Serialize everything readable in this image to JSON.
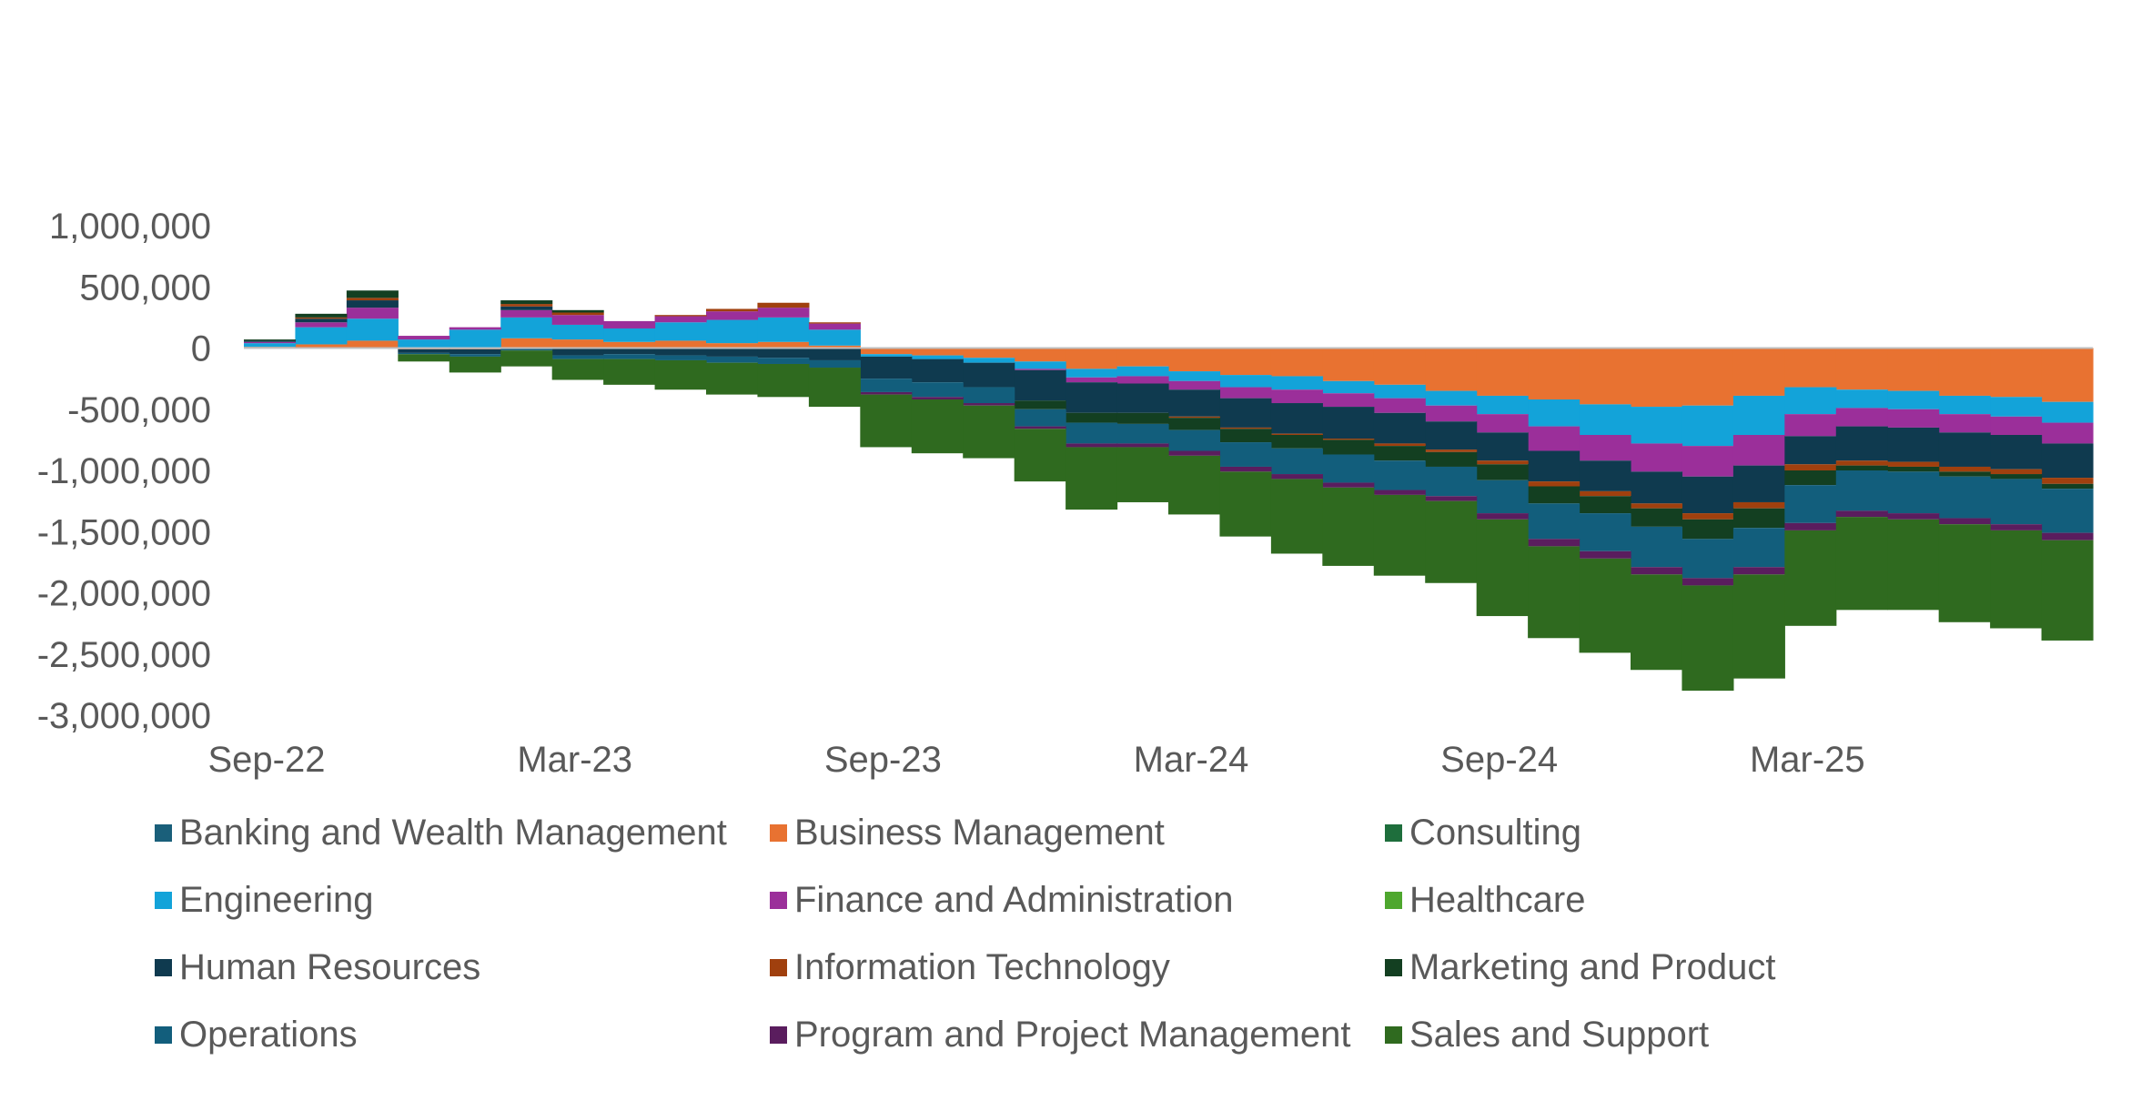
{
  "chart_data": {
    "type": "stacked-area",
    "title": "",
    "xlabel": "",
    "ylabel": "",
    "ylim": [
      -3000000,
      1000000
    ],
    "yticks": [
      1000000,
      500000,
      0,
      -500000,
      -1000000,
      -1500000,
      -2000000,
      -2500000,
      -3000000
    ],
    "ytick_labels": [
      "1,000,000",
      "500,000",
      "0",
      "-500,000",
      "-1,000,000",
      "-1,500,000",
      "-2,000,000",
      "-2,500,000",
      "-3,000,000"
    ],
    "x_ticks": [
      {
        "index": 0,
        "label": "Sep-22"
      },
      {
        "index": 6,
        "label": "Mar-23"
      },
      {
        "index": 12,
        "label": "Sep-23"
      },
      {
        "index": 18,
        "label": "Mar-24"
      },
      {
        "index": 24,
        "label": "Sep-24"
      },
      {
        "index": 30,
        "label": "Mar-25"
      }
    ],
    "legend_position": "bottom",
    "months": [
      "Sep-22",
      "Oct-22",
      "Nov-22",
      "Dec-22",
      "Jan-23",
      "Feb-23",
      "Mar-23",
      "Apr-23",
      "May-23",
      "Jun-23",
      "Jul-23",
      "Aug-23",
      "Sep-23",
      "Oct-23",
      "Nov-23",
      "Dec-23",
      "Jan-24",
      "Feb-24",
      "Mar-24",
      "Apr-24",
      "May-24",
      "Jun-24",
      "Jul-24",
      "Aug-24",
      "Sep-24",
      "Oct-24",
      "Nov-24",
      "Dec-24",
      "Jan-25",
      "Feb-25",
      "Mar-25",
      "Apr-25",
      "May-25",
      "Jun-25",
      "Jul-25",
      "Aug-25"
    ],
    "series": [
      {
        "name": "Banking and Wealth Management",
        "color": "#1a5f7a",
        "values": [
          0,
          0,
          0,
          0,
          0,
          0,
          0,
          0,
          0,
          0,
          0,
          0,
          0,
          0,
          0,
          0,
          0,
          0,
          0,
          0,
          0,
          0,
          0,
          0,
          0,
          0,
          0,
          0,
          0,
          0,
          0,
          0,
          0,
          0,
          0,
          0
        ]
      },
      {
        "name": "Business Management",
        "color": "#e87231",
        "values": [
          10000,
          30000,
          60000,
          -10000,
          -10000,
          80000,
          70000,
          50000,
          60000,
          40000,
          50000,
          20000,
          -50000,
          -60000,
          -80000,
          -110000,
          -170000,
          -150000,
          -190000,
          -220000,
          -230000,
          -270000,
          -300000,
          -350000,
          -390000,
          -420000,
          -460000,
          -480000,
          -470000,
          -390000,
          -320000,
          -340000,
          -350000,
          -390000,
          -400000,
          -440000
        ]
      },
      {
        "name": "Consulting",
        "color": "#1e6e3c",
        "values": [
          0,
          0,
          0,
          0,
          0,
          0,
          0,
          0,
          0,
          0,
          0,
          0,
          0,
          0,
          0,
          0,
          0,
          0,
          0,
          0,
          0,
          0,
          0,
          0,
          0,
          0,
          0,
          0,
          0,
          0,
          0,
          0,
          0,
          0,
          0,
          0
        ]
      },
      {
        "name": "Engineering",
        "color": "#13a3d9",
        "values": [
          30000,
          140000,
          180000,
          70000,
          150000,
          170000,
          120000,
          110000,
          150000,
          190000,
          200000,
          130000,
          -20000,
          -30000,
          -40000,
          -60000,
          -70000,
          -80000,
          -80000,
          -100000,
          -110000,
          -100000,
          -110000,
          -120000,
          -150000,
          -220000,
          -250000,
          -300000,
          -330000,
          -320000,
          -220000,
          -150000,
          -150000,
          -150000,
          -160000,
          -170000
        ]
      },
      {
        "name": "Finance and Administration",
        "color": "#9b2f9a",
        "values": [
          10000,
          40000,
          90000,
          30000,
          20000,
          60000,
          80000,
          60000,
          50000,
          70000,
          80000,
          50000,
          0,
          0,
          0,
          -10000,
          -40000,
          -60000,
          -70000,
          -90000,
          -110000,
          -110000,
          -120000,
          -130000,
          -150000,
          -200000,
          -210000,
          -230000,
          -250000,
          -250000,
          -180000,
          -150000,
          -150000,
          -150000,
          -150000,
          -170000
        ]
      },
      {
        "name": "Healthcare",
        "color": "#4ea72e",
        "values": [
          0,
          0,
          0,
          0,
          0,
          0,
          0,
          0,
          0,
          0,
          0,
          0,
          0,
          0,
          0,
          0,
          0,
          0,
          0,
          0,
          0,
          0,
          0,
          0,
          0,
          0,
          0,
          0,
          0,
          0,
          0,
          0,
          0,
          0,
          0,
          0
        ]
      },
      {
        "name": "Human Resources",
        "color": "#0f3a4f",
        "values": [
          10000,
          30000,
          60000,
          -30000,
          -40000,
          30000,
          -60000,
          -50000,
          -60000,
          -70000,
          -80000,
          -100000,
          -180000,
          -190000,
          -200000,
          -250000,
          -250000,
          -240000,
          -220000,
          -240000,
          -250000,
          -260000,
          -250000,
          -230000,
          -230000,
          -250000,
          -250000,
          -260000,
          -300000,
          -300000,
          -230000,
          -280000,
          -280000,
          -280000,
          -280000,
          -280000
        ]
      },
      {
        "name": "Information Technology",
        "color": "#a0400e",
        "values": [
          0,
          10000,
          20000,
          0,
          0,
          20000,
          20000,
          0,
          10000,
          20000,
          40000,
          10000,
          0,
          0,
          0,
          0,
          0,
          0,
          -10000,
          -10000,
          -10000,
          -10000,
          -20000,
          -20000,
          -30000,
          -40000,
          -40000,
          -40000,
          -50000,
          -50000,
          -50000,
          -40000,
          -40000,
          -40000,
          -40000,
          -50000
        ]
      },
      {
        "name": "Marketing and Product",
        "color": "#133f21",
        "values": [
          10000,
          30000,
          60000,
          0,
          0,
          30000,
          20000,
          0,
          0,
          0,
          0,
          0,
          0,
          0,
          0,
          -70000,
          -80000,
          -90000,
          -100000,
          -110000,
          -110000,
          -120000,
          -120000,
          -120000,
          -130000,
          -140000,
          -140000,
          -150000,
          -160000,
          -160000,
          -120000,
          -40000,
          -40000,
          -40000,
          -40000,
          -40000
        ]
      },
      {
        "name": "Operations",
        "color": "#125e7c",
        "values": [
          0,
          0,
          0,
          -10000,
          -20000,
          -20000,
          -30000,
          -40000,
          -40000,
          -50000,
          -50000,
          -60000,
          -110000,
          -120000,
          -130000,
          -140000,
          -170000,
          -160000,
          -170000,
          -200000,
          -210000,
          -230000,
          -240000,
          -240000,
          -270000,
          -290000,
          -310000,
          -330000,
          -320000,
          -320000,
          -310000,
          -330000,
          -340000,
          -340000,
          -370000,
          -360000
        ]
      },
      {
        "name": "Program and Project Management",
        "color": "#5a1d5e",
        "values": [
          0,
          0,
          0,
          0,
          0,
          0,
          0,
          0,
          0,
          0,
          0,
          0,
          -20000,
          -20000,
          -20000,
          -20000,
          -30000,
          -30000,
          -40000,
          -40000,
          -40000,
          -40000,
          -40000,
          -40000,
          -50000,
          -60000,
          -60000,
          -60000,
          -60000,
          -60000,
          -60000,
          -50000,
          -50000,
          -50000,
          -50000,
          -60000
        ]
      },
      {
        "name": "Sales and Support",
        "color": "#2f6a1f",
        "values": [
          0,
          0,
          0,
          -60000,
          -130000,
          -130000,
          -170000,
          -210000,
          -240000,
          -260000,
          -270000,
          -320000,
          -430000,
          -440000,
          -430000,
          -430000,
          -510000,
          -450000,
          -480000,
          -530000,
          -610000,
          -640000,
          -660000,
          -670000,
          -790000,
          -750000,
          -770000,
          -780000,
          -860000,
          -850000,
          -780000,
          -760000,
          -740000,
          -800000,
          -800000,
          -820000
        ]
      }
    ]
  }
}
